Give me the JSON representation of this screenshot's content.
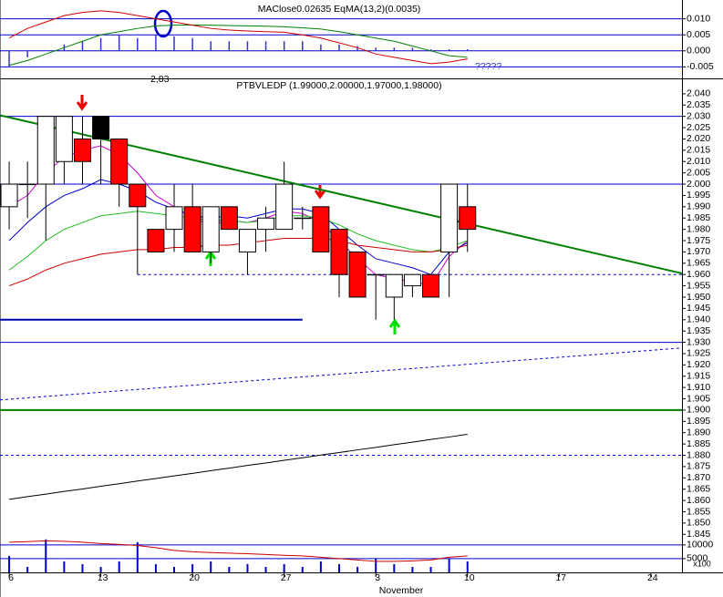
{
  "chart_data": [
    {
      "type": "macd",
      "title": "MAClose0.02635 EqMA(13,2)(0.0035)",
      "note": "?????",
      "marker_label": "2,83",
      "x": [
        0,
        1,
        2,
        3,
        4,
        5,
        6,
        7,
        8,
        9,
        10,
        11,
        12,
        13,
        14,
        15,
        16,
        17,
        18,
        19,
        20,
        21,
        22,
        23,
        24,
        25
      ],
      "ylim": [
        -0.0083,
        0.0153
      ],
      "yticks": [
        {
          "value": 0.01,
          "label": "0.010"
        },
        {
          "value": 0.005,
          "label": "0.005"
        },
        {
          "value": 0,
          "label": "0.000"
        },
        {
          "value": -0.005,
          "label": "-0.005"
        }
      ],
      "histogram": {
        "color": "#3333cc",
        "values": [
          -0.005,
          -0.002,
          0,
          0.002,
          0.003,
          0.004,
          0.005,
          0.004,
          0.005,
          0.0045,
          0.004,
          0.003,
          0.003,
          0.003,
          0.003,
          0.003,
          0.003,
          0.002,
          0.002,
          0.0015,
          0.001,
          0.001,
          0.001,
          0.0005,
          0.0005,
          0.0005
        ]
      },
      "series": [
        {
          "color": "#008000",
          "values": [
            -0.0045,
            -0.003,
            -0.001,
            0.001,
            0.003,
            0.005,
            0.006,
            0.007,
            0.0078,
            0.008,
            0.0081,
            0.008,
            0.0079,
            0.0078,
            0.0077,
            0.0075,
            0.0072,
            0.0068,
            0.006,
            0.005,
            0.004,
            0.003,
            0.0015,
            0,
            -0.0015,
            -0.002
          ]
        },
        {
          "color": "#cc0000",
          "values": [
            0.004,
            0.007,
            0.009,
            0.011,
            0.012,
            0.0125,
            0.012,
            0.011,
            0.01,
            0.009,
            0.008,
            0.007,
            0.0065,
            0.0062,
            0.006,
            0.0058,
            0.005,
            0.004,
            0.0025,
            0.001,
            -0.001,
            -0.002,
            -0.003,
            -0.004,
            -0.0035,
            -0.0025
          ]
        }
      ]
    },
    {
      "type": "candlestick",
      "title": "PTBVLEDP (1.99000,2.00000,1.97000,1.98000)",
      "x": [
        0,
        1,
        2,
        3,
        4,
        5,
        6,
        7,
        8,
        9,
        10,
        11,
        12,
        13,
        14,
        15,
        16,
        17,
        18,
        19,
        20,
        21,
        22,
        23,
        24,
        25
      ],
      "open": [
        1.99,
        2.0,
        2.0,
        2.01,
        2.02,
        2.03,
        2.02,
        2.0,
        1.98,
        1.98,
        1.99,
        1.97,
        1.99,
        1.97,
        1.98,
        1.98,
        1.985,
        1.99,
        1.98,
        1.97,
        1.96,
        1.95,
        1.96,
        1.96,
        1.97,
        1.99
      ],
      "high": [
        2.01,
        2.01,
        2.03,
        2.03,
        2.03,
        2.03,
        2.02,
        2.0,
        1.98,
        2.0,
        2.0,
        1.99,
        1.99,
        1.98,
        1.99,
        2.01,
        1.99,
        1.99,
        1.98,
        1.97,
        1.96,
        1.96,
        1.96,
        1.96,
        2.0,
        2.0
      ],
      "low": [
        1.98,
        1.985,
        1.975,
        2.0,
        2.0,
        2.0,
        1.99,
        1.96,
        1.97,
        1.97,
        1.97,
        1.965,
        1.98,
        1.96,
        1.97,
        1.98,
        1.98,
        1.97,
        1.95,
        1.95,
        1.94,
        1.94,
        1.95,
        1.95,
        1.95,
        1.97
      ],
      "close": [
        2.0,
        2.0,
        2.03,
        2.03,
        2.01,
        2.02,
        2.0,
        1.99,
        1.97,
        1.99,
        1.97,
        1.99,
        1.98,
        1.98,
        1.985,
        2.0,
        1.985,
        1.97,
        1.96,
        1.95,
        1.96,
        1.96,
        1.955,
        1.95,
        2.0,
        1.98
      ],
      "colors": [
        "#ffffff",
        "#ffffff",
        "#ffffff",
        "#ffffff",
        "#ff0000",
        "#000000",
        "#ff0000",
        "#ff0000",
        "#ff0000",
        "#ffffff",
        "#ff0000",
        "#ffffff",
        "#ff0000",
        "#ffffff",
        "#ffffff",
        "#ffffff",
        "#ffffff",
        "#ff0000",
        "#ff0000",
        "#ff0000",
        "#ffffff",
        "#ffffff",
        "#ffffff",
        "#ff0000",
        "#ffffff",
        "#ff0000"
      ],
      "ylim": [
        1.8435,
        2.046
      ],
      "yticks": [
        {
          "value": 2.04,
          "label": "2.040"
        },
        {
          "value": 2.035,
          "label": "2.035"
        },
        {
          "value": 2.03,
          "label": "2.030"
        },
        {
          "value": 2.025,
          "label": "2.025"
        },
        {
          "value": 2.02,
          "label": "2.020"
        },
        {
          "value": 2.015,
          "label": "2.015"
        },
        {
          "value": 2.01,
          "label": "2.010"
        },
        {
          "value": 2.005,
          "label": "2.005"
        },
        {
          "value": 2.0,
          "label": "2.000"
        },
        {
          "value": 1.995,
          "label": "1.995"
        },
        {
          "value": 1.99,
          "label": "1.990"
        },
        {
          "value": 1.985,
          "label": "1.985"
        },
        {
          "value": 1.98,
          "label": "1.980"
        },
        {
          "value": 1.975,
          "label": "1.975"
        },
        {
          "value": 1.97,
          "label": "1.970"
        },
        {
          "value": 1.965,
          "label": "1.965"
        },
        {
          "value": 1.96,
          "label": "1.960"
        },
        {
          "value": 1.955,
          "label": "1.955"
        },
        {
          "value": 1.95,
          "label": "1.950"
        },
        {
          "value": 1.945,
          "label": "1.945"
        },
        {
          "value": 1.94,
          "label": "1.940"
        },
        {
          "value": 1.935,
          "label": "1.935"
        },
        {
          "value": 1.93,
          "label": "1.930"
        },
        {
          "value": 1.925,
          "label": "1.925"
        },
        {
          "value": 1.92,
          "label": "1.920"
        },
        {
          "value": 1.915,
          "label": "1.915"
        },
        {
          "value": 1.91,
          "label": "1.910"
        },
        {
          "value": 1.905,
          "label": "1.905"
        },
        {
          "value": 1.9,
          "label": "1.900"
        },
        {
          "value": 1.895,
          "label": "1.895"
        },
        {
          "value": 1.89,
          "label": "1.890"
        },
        {
          "value": 1.885,
          "label": "1.885"
        },
        {
          "value": 1.88,
          "label": "1.880"
        },
        {
          "value": 1.875,
          "label": "1.875"
        },
        {
          "value": 1.87,
          "label": "1.870"
        },
        {
          "value": 1.865,
          "label": "1.865"
        },
        {
          "value": 1.86,
          "label": "1.860"
        },
        {
          "value": 1.855,
          "label": "1.855"
        },
        {
          "value": 1.85,
          "label": "1.850"
        },
        {
          "value": 1.845,
          "label": "1.845"
        }
      ],
      "series": [
        {
          "color": "#cc00cc",
          "values": [
            1.99,
            1.995,
            2.005,
            2.012,
            2.015,
            2.017,
            2.013,
            2.005,
            1.995,
            1.99,
            1.985,
            1.982,
            1.984,
            1.983,
            1.985,
            1.988,
            1.987,
            1.983,
            1.975,
            1.967,
            1.96,
            1.958,
            1.957,
            1.955,
            1.968,
            1.975
          ]
        },
        {
          "color": "#0000cc",
          "values": [
            1.975,
            1.983,
            1.99,
            1.995,
            1.998,
            2.002,
            2.0,
            1.997,
            1.992,
            1.989,
            1.986,
            1.985,
            1.986,
            1.985,
            1.987,
            1.989,
            1.989,
            1.987,
            1.98,
            1.973,
            1.967,
            1.965,
            1.963,
            1.96,
            1.97,
            1.974
          ]
        },
        {
          "color": "#22bb22",
          "values": [
            1.962,
            1.968,
            1.975,
            1.98,
            1.983,
            1.986,
            1.987,
            1.988,
            1.987,
            1.986,
            1.985,
            1.984,
            1.984,
            1.983,
            1.984,
            1.986,
            1.986,
            1.985,
            1.982,
            1.978,
            1.975,
            1.973,
            1.971,
            1.97,
            1.972,
            1.975
          ]
        },
        {
          "color": "#cc0000",
          "values": [
            1.955,
            1.958,
            1.962,
            1.965,
            1.967,
            1.969,
            1.97,
            1.971,
            1.971,
            1.972,
            1.972,
            1.973,
            1.973,
            1.974,
            1.975,
            1.976,
            1.976,
            1.976,
            1.975,
            1.973,
            1.972,
            1.971,
            1.97,
            1.97,
            1.971,
            1.973
          ]
        },
        {
          "color": "#000000",
          "values": [
            1.8605,
            1.8617,
            1.8628,
            1.864,
            1.8651,
            1.8663,
            1.8674,
            1.8686,
            1.8697,
            1.8709,
            1.872,
            1.8732,
            1.8743,
            1.8755,
            1.8766,
            1.8778,
            1.8789,
            1.8801,
            1.8812,
            1.8824,
            1.8835,
            1.8847,
            1.8858,
            1.887,
            1.8881,
            1.8893
          ]
        }
      ],
      "lines": [
        {
          "x": [
            -0.5,
            36.7
          ],
          "y": [
            2.03,
            2.03
          ],
          "color": "#0000cc",
          "style": "solid",
          "width": 1
        },
        {
          "x": [
            -0.5,
            36.7
          ],
          "y": [
            2.0,
            2.0
          ],
          "color": "#0000cc",
          "style": "solid",
          "width": 1
        },
        {
          "x": [
            -0.5,
            36.7
          ],
          "y": [
            1.93,
            1.93
          ],
          "color": "#0000cc",
          "style": "solid",
          "width": 1
        },
        {
          "x": [
            -0.5,
            36.7
          ],
          "y": [
            1.9,
            1.9
          ],
          "color": "#008000",
          "style": "solid",
          "width": 2
        },
        {
          "x": [
            -0.5,
            36.7
          ],
          "y": [
            1.88,
            1.88
          ],
          "color": "#0000cc",
          "style": "dotted",
          "width": 1
        },
        {
          "x": [
            7,
            36.7
          ],
          "y": [
            1.96,
            1.96
          ],
          "color": "#0000cc",
          "style": "dotted",
          "width": 1
        },
        {
          "x": [
            -0.5,
            16
          ],
          "y": [
            1.94,
            1.94
          ],
          "color": "#0000aa",
          "style": "solid",
          "width": 2
        },
        {
          "x": [
            -0.5,
            36.7
          ],
          "y": [
            1.9045,
            1.9275
          ],
          "color": "#0000cc",
          "style": "dotted",
          "width": 1
        },
        {
          "x": [
            -0.5,
            36.7
          ],
          "y": [
            2.0305,
            1.9605
          ],
          "color": "#008000",
          "style": "solid",
          "width": 2
        }
      ]
    },
    {
      "type": "volume",
      "unit_label": "x100",
      "xlabel": "November",
      "x": [
        0,
        1,
        2,
        3,
        4,
        5,
        6,
        7,
        8,
        9,
        10,
        11,
        12,
        13,
        14,
        15,
        16,
        17,
        18,
        19,
        20,
        21,
        22,
        23,
        24,
        25
      ],
      "xlim": [
        -0.5,
        36.7
      ],
      "xticks": [
        {
          "value": 0,
          "label": "6"
        },
        {
          "value": 5,
          "label": "13"
        },
        {
          "value": 10,
          "label": "20"
        },
        {
          "value": 15,
          "label": "27"
        },
        {
          "value": 20,
          "label": "3"
        },
        {
          "value": 25,
          "label": "10"
        },
        {
          "value": 30,
          "label": "17"
        },
        {
          "value": 35,
          "label": "24"
        }
      ],
      "ylim": [
        0,
        12600
      ],
      "yticks": [
        10000,
        5000
      ],
      "color": "#0000cc",
      "values": [
        6000,
        2000,
        12000,
        4000,
        3000,
        2000,
        4000,
        11000,
        3000,
        2000,
        3000,
        4000,
        2000,
        3000,
        2000,
        3000,
        2000,
        4000,
        3000,
        2000,
        5000,
        3000,
        2000,
        2000,
        5000,
        4000
      ],
      "series": [
        {
          "color": "#cc0000",
          "values": [
            11000,
            11200,
            11500,
            11300,
            11000,
            10500,
            10200,
            9800,
            9000,
            8000,
            7500,
            7200,
            7000,
            6800,
            6500,
            6200,
            6000,
            5500,
            5000,
            4500,
            4000,
            4000,
            4200,
            4500,
            5500,
            6000
          ]
        }
      ]
    }
  ]
}
